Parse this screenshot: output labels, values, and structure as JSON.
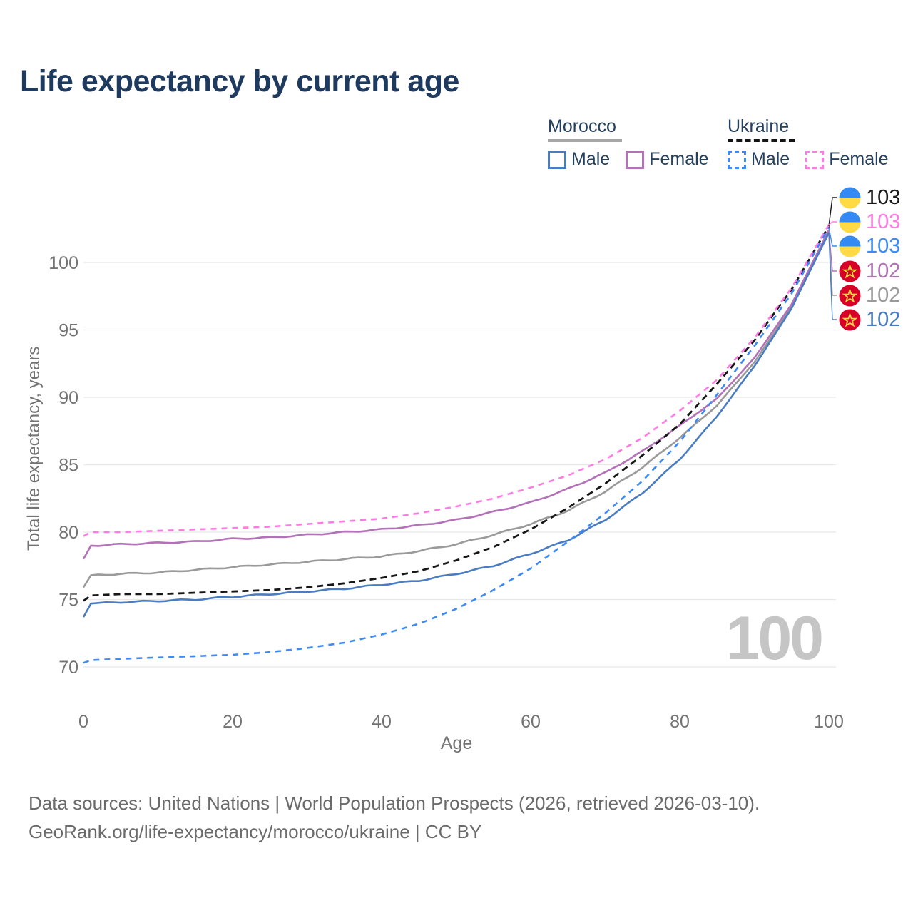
{
  "header": {
    "title": "Life expectancy by current age"
  },
  "legend": {
    "morocco": {
      "label": "Morocco",
      "male": "Male",
      "female": "Female"
    },
    "ukraine": {
      "label": "Ukraine",
      "male": "Male",
      "female": "Female"
    }
  },
  "watermark_age": "100",
  "callouts": [
    {
      "series": "ukraine_total",
      "flag": "ukraine",
      "value": "103",
      "color": "#1a1a1a"
    },
    {
      "series": "ukraine_female",
      "flag": "ukraine",
      "value": "103",
      "color": "#ff7ae4"
    },
    {
      "series": "ukraine_male",
      "flag": "ukraine",
      "value": "103",
      "color": "#3e8af5"
    },
    {
      "series": "morocco_female",
      "flag": "morocco",
      "value": "102",
      "color": "#b371b8"
    },
    {
      "series": "morocco_total",
      "flag": "morocco",
      "value": "102",
      "color": "#9a9a9a"
    },
    {
      "series": "morocco_male",
      "flag": "morocco",
      "value": "102",
      "color": "#4a7cc2"
    }
  ],
  "chart_data": {
    "type": "line",
    "title": "Life expectancy by current age",
    "xlabel": "Age",
    "ylabel": "Total life expectancy, years",
    "xlim": [
      0,
      100
    ],
    "ylim": [
      70,
      103
    ],
    "xticks": [
      0,
      20,
      40,
      60,
      80,
      100
    ],
    "yticks": [
      70,
      75,
      80,
      85,
      90,
      95,
      100
    ],
    "grid": "horizontal",
    "legend_position": "top-right",
    "ages": [
      0,
      1,
      5,
      10,
      15,
      20,
      25,
      30,
      35,
      40,
      45,
      50,
      55,
      60,
      65,
      70,
      75,
      80,
      85,
      90,
      95,
      100
    ],
    "series": [
      {
        "id": "morocco_male",
        "country": "Morocco",
        "sex": "Male",
        "color": "#4a7cc2",
        "dash": "solid",
        "values": [
          73.7,
          74.7,
          74.8,
          74.9,
          75.0,
          75.2,
          75.4,
          75.6,
          75.8,
          76.1,
          76.4,
          76.9,
          77.5,
          78.4,
          79.4,
          80.9,
          82.9,
          85.4,
          88.6,
          92.3,
          96.6,
          102.2
        ]
      },
      {
        "id": "morocco_female",
        "country": "Morocco",
        "sex": "Female",
        "color": "#b371b8",
        "dash": "solid",
        "values": [
          78.0,
          79.0,
          79.1,
          79.2,
          79.3,
          79.5,
          79.6,
          79.8,
          80.0,
          80.2,
          80.5,
          80.9,
          81.5,
          82.2,
          83.2,
          84.4,
          86.0,
          87.9,
          89.9,
          92.9,
          96.9,
          102.4
        ]
      },
      {
        "id": "morocco_total",
        "country": "Morocco",
        "sex": "Both",
        "color": "#9a9a9a",
        "dash": "solid",
        "values": [
          75.9,
          76.8,
          76.9,
          77.0,
          77.2,
          77.4,
          77.6,
          77.8,
          78.0,
          78.2,
          78.6,
          79.1,
          79.8,
          80.6,
          81.6,
          83.0,
          84.8,
          87.0,
          89.4,
          92.6,
          96.7,
          102.3
        ]
      },
      {
        "id": "ukraine_male",
        "country": "Ukraine",
        "sex": "Male",
        "color": "#3e8af5",
        "dash": "dashed",
        "values": [
          70.3,
          70.5,
          70.6,
          70.7,
          70.8,
          70.9,
          71.1,
          71.4,
          71.8,
          72.4,
          73.2,
          74.3,
          75.7,
          77.3,
          79.3,
          81.4,
          83.8,
          86.7,
          90.2,
          93.8,
          97.7,
          102.6
        ]
      },
      {
        "id": "ukraine_female",
        "country": "Ukraine",
        "sex": "Female",
        "color": "#ff7ae4",
        "dash": "dashed",
        "values": [
          79.7,
          80.0,
          80.0,
          80.1,
          80.2,
          80.3,
          80.4,
          80.6,
          80.8,
          81.0,
          81.4,
          81.9,
          82.5,
          83.3,
          84.2,
          85.4,
          87.0,
          89.0,
          91.3,
          94.4,
          98.1,
          102.8
        ]
      },
      {
        "id": "ukraine_total",
        "country": "Ukraine",
        "sex": "Both",
        "color": "#161616",
        "dash": "dashed",
        "values": [
          74.9,
          75.3,
          75.4,
          75.4,
          75.5,
          75.6,
          75.7,
          75.9,
          76.2,
          76.6,
          77.1,
          77.9,
          78.9,
          80.2,
          81.8,
          83.6,
          85.7,
          88.0,
          91.0,
          94.2,
          98.0,
          102.7
        ]
      }
    ]
  },
  "footer": {
    "line1": "Data sources: United Nations | World Population Prospects (2026, retrieved 2026-03-10).",
    "line2": "GeoRank.org/life-expectancy/morocco/ukraine | CC BY"
  }
}
